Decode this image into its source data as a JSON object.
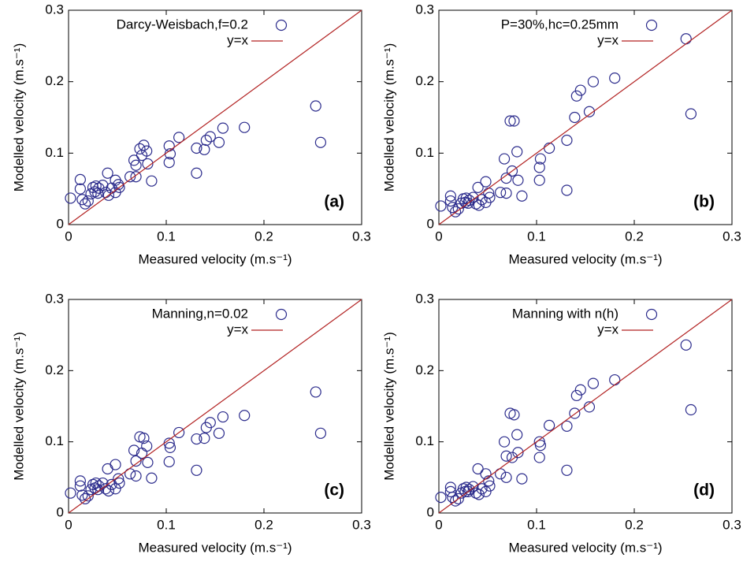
{
  "chart_data": [
    {
      "type": "scatter",
      "xlabel": "Measured velocity (m.s⁻¹)",
      "ylabel": "Modelled velocity (m.s⁻¹)",
      "annotation": "(a)",
      "xlim": [
        0,
        0.3
      ],
      "ylim": [
        0,
        0.3
      ],
      "xticks": [
        0,
        0.1,
        0.2,
        0.3
      ],
      "yticks": [
        0,
        0.1,
        0.2,
        0.3
      ],
      "grid": false,
      "legend": "top",
      "series": [
        {
          "name": "Darcy-Weisbach,f=0.2",
          "color": "#2b2b8c",
          "marker": "circle",
          "x": [
            0.002,
            0.012,
            0.012,
            0.014,
            0.017,
            0.02,
            0.023,
            0.025,
            0.027,
            0.028,
            0.03,
            0.031,
            0.035,
            0.038,
            0.04,
            0.041,
            0.044,
            0.048,
            0.051,
            0.052,
            0.048,
            0.063,
            0.067,
            0.069,
            0.069,
            0.073,
            0.077,
            0.075,
            0.08,
            0.081,
            0.085,
            0.103,
            0.103,
            0.104,
            0.113,
            0.131,
            0.131,
            0.139,
            0.141,
            0.145,
            0.154,
            0.158,
            0.18,
            0.253,
            0.258
          ],
          "values": [
            0.037,
            0.063,
            0.05,
            0.035,
            0.029,
            0.033,
            0.043,
            0.052,
            0.046,
            0.054,
            0.044,
            0.051,
            0.055,
            0.045,
            0.072,
            0.041,
            0.051,
            0.045,
            0.056,
            0.052,
            0.062,
            0.067,
            0.09,
            0.083,
            0.067,
            0.106,
            0.111,
            0.097,
            0.103,
            0.085,
            0.061,
            0.11,
            0.087,
            0.099,
            0.122,
            0.072,
            0.107,
            0.105,
            0.118,
            0.123,
            0.115,
            0.135,
            0.136,
            0.166,
            0.115
          ]
        },
        {
          "name": "y=x",
          "color": "#b22222",
          "marker": "line",
          "x": [
            0,
            0.3
          ],
          "values": [
            0,
            0.3
          ]
        }
      ]
    },
    {
      "type": "scatter",
      "xlabel": "Measured velocity (m.s⁻¹)",
      "ylabel": "Modelled velocity (m.s⁻¹)",
      "annotation": "(b)",
      "xlim": [
        0,
        0.3
      ],
      "ylim": [
        0,
        0.3
      ],
      "xticks": [
        0,
        0.1,
        0.2,
        0.3
      ],
      "yticks": [
        0,
        0.1,
        0.2,
        0.3
      ],
      "grid": false,
      "legend": "top",
      "series": [
        {
          "name": "P=30%,hc=0.25mm",
          "color": "#2b2b8c",
          "marker": "circle",
          "x": [
            0.002,
            0.012,
            0.012,
            0.014,
            0.017,
            0.02,
            0.023,
            0.025,
            0.027,
            0.028,
            0.03,
            0.031,
            0.035,
            0.038,
            0.04,
            0.041,
            0.044,
            0.048,
            0.051,
            0.052,
            0.048,
            0.063,
            0.067,
            0.069,
            0.069,
            0.073,
            0.077,
            0.075,
            0.08,
            0.081,
            0.085,
            0.103,
            0.103,
            0.104,
            0.113,
            0.131,
            0.131,
            0.139,
            0.141,
            0.145,
            0.154,
            0.158,
            0.18,
            0.253,
            0.258
          ],
          "values": [
            0.026,
            0.04,
            0.033,
            0.024,
            0.018,
            0.022,
            0.03,
            0.036,
            0.031,
            0.037,
            0.03,
            0.034,
            0.038,
            0.029,
            0.052,
            0.027,
            0.035,
            0.031,
            0.044,
            0.038,
            0.06,
            0.045,
            0.092,
            0.065,
            0.044,
            0.145,
            0.145,
            0.075,
            0.102,
            0.062,
            0.04,
            0.08,
            0.062,
            0.092,
            0.107,
            0.048,
            0.118,
            0.15,
            0.18,
            0.188,
            0.158,
            0.2,
            0.205,
            0.26,
            0.155
          ]
        },
        {
          "name": "y=x",
          "color": "#b22222",
          "marker": "line",
          "x": [
            0,
            0.3
          ],
          "values": [
            0,
            0.3
          ]
        }
      ]
    },
    {
      "type": "scatter",
      "xlabel": "Measured velocity (m.s⁻¹)",
      "ylabel": "Modelled velocity (m.s⁻¹)",
      "annotation": "(c)",
      "xlim": [
        0,
        0.3
      ],
      "ylim": [
        0,
        0.3
      ],
      "xticks": [
        0,
        0.1,
        0.2,
        0.3
      ],
      "yticks": [
        0,
        0.1,
        0.2,
        0.3
      ],
      "grid": false,
      "legend": "top",
      "series": [
        {
          "name": "Manning,n=0.02",
          "color": "#2b2b8c",
          "marker": "circle",
          "x": [
            0.002,
            0.012,
            0.012,
            0.014,
            0.017,
            0.02,
            0.023,
            0.025,
            0.027,
            0.028,
            0.03,
            0.031,
            0.035,
            0.038,
            0.04,
            0.041,
            0.044,
            0.048,
            0.051,
            0.052,
            0.048,
            0.063,
            0.067,
            0.069,
            0.069,
            0.073,
            0.077,
            0.075,
            0.08,
            0.081,
            0.085,
            0.103,
            0.103,
            0.104,
            0.113,
            0.131,
            0.131,
            0.139,
            0.141,
            0.145,
            0.154,
            0.158,
            0.18,
            0.253,
            0.258
          ],
          "values": [
            0.028,
            0.045,
            0.038,
            0.025,
            0.02,
            0.024,
            0.033,
            0.04,
            0.035,
            0.042,
            0.033,
            0.038,
            0.042,
            0.034,
            0.062,
            0.031,
            0.04,
            0.034,
            0.048,
            0.042,
            0.068,
            0.055,
            0.088,
            0.073,
            0.052,
            0.107,
            0.105,
            0.084,
            0.094,
            0.071,
            0.049,
            0.098,
            0.072,
            0.092,
            0.113,
            0.06,
            0.104,
            0.105,
            0.12,
            0.127,
            0.112,
            0.135,
            0.137,
            0.17,
            0.112
          ]
        },
        {
          "name": "y=x",
          "color": "#b22222",
          "marker": "line",
          "x": [
            0,
            0.3
          ],
          "values": [
            0,
            0.3
          ]
        }
      ]
    },
    {
      "type": "scatter",
      "xlabel": "Measured velocity (m.s⁻¹)",
      "ylabel": "Modelled velocity (m.s⁻¹)",
      "annotation": "(d)",
      "xlim": [
        0,
        0.3
      ],
      "ylim": [
        0,
        0.3
      ],
      "xticks": [
        0,
        0.1,
        0.2,
        0.3
      ],
      "yticks": [
        0,
        0.1,
        0.2,
        0.3
      ],
      "grid": false,
      "legend": "top",
      "series": [
        {
          "name": "Manning with n(h)",
          "color": "#2b2b8c",
          "marker": "circle",
          "x": [
            0.002,
            0.012,
            0.012,
            0.014,
            0.017,
            0.02,
            0.023,
            0.025,
            0.027,
            0.028,
            0.03,
            0.031,
            0.035,
            0.038,
            0.04,
            0.041,
            0.044,
            0.048,
            0.051,
            0.052,
            0.048,
            0.063,
            0.067,
            0.069,
            0.069,
            0.073,
            0.077,
            0.075,
            0.08,
            0.081,
            0.085,
            0.103,
            0.103,
            0.104,
            0.113,
            0.131,
            0.131,
            0.139,
            0.141,
            0.145,
            0.154,
            0.158,
            0.18,
            0.253,
            0.258
          ],
          "values": [
            0.022,
            0.036,
            0.03,
            0.022,
            0.017,
            0.02,
            0.028,
            0.034,
            0.03,
            0.036,
            0.03,
            0.033,
            0.037,
            0.028,
            0.062,
            0.026,
            0.034,
            0.03,
            0.045,
            0.038,
            0.055,
            0.055,
            0.1,
            0.08,
            0.05,
            0.14,
            0.138,
            0.078,
            0.11,
            0.085,
            0.048,
            0.1,
            0.078,
            0.095,
            0.123,
            0.06,
            0.122,
            0.14,
            0.165,
            0.173,
            0.149,
            0.182,
            0.187,
            0.236,
            0.145
          ]
        },
        {
          "name": "y=x",
          "color": "#b22222",
          "marker": "line",
          "x": [
            0,
            0.3
          ],
          "values": [
            0,
            0.3
          ]
        }
      ]
    }
  ]
}
